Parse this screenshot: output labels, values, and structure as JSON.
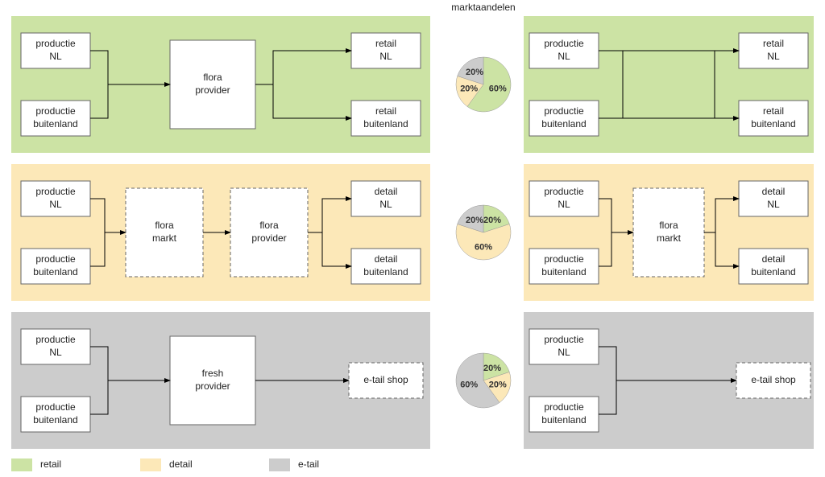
{
  "title": "marktaandelen",
  "colors": {
    "retail": "#cce3a4",
    "detail": "#fce8b8",
    "etail": "#cccccc",
    "retail_light": "#d6e9b5",
    "detail_light": "#fde9bd",
    "etail_light": "#d2d2d2",
    "node_fill": "#ffffff",
    "node_stroke": "#666666",
    "arrow": "#000000"
  },
  "legend": [
    {
      "label": "retail",
      "color_key": "retail"
    },
    {
      "label": "detail",
      "color_key": "detail"
    },
    {
      "label": "e-tail",
      "color_key": "etail"
    }
  ],
  "rows": [
    {
      "bg_key": "retail",
      "pie": {
        "slices": [
          {
            "label": "60%",
            "value": 60,
            "color_key": "retail"
          },
          {
            "label": "20%",
            "value": 20,
            "color_key": "detail"
          },
          {
            "label": "20%",
            "value": 20,
            "color_key": "etail"
          }
        ]
      },
      "left": {
        "nodes": {
          "prodNL": {
            "label1": "productie",
            "label2": "NL"
          },
          "prodBL": {
            "label1": "productie",
            "label2": "buitenland"
          },
          "mid": {
            "label1": "flora",
            "label2": "provider",
            "tall": true
          },
          "outTop": {
            "label1": "retail",
            "label2": "NL"
          },
          "outBot": {
            "label1": "retail",
            "label2": "buitenland"
          }
        }
      },
      "right": {
        "nodes": {
          "prodNL": {
            "label1": "productie",
            "label2": "NL"
          },
          "prodBL": {
            "label1": "productie",
            "label2": "buitenland"
          },
          "outTop": {
            "label1": "retail",
            "label2": "NL"
          },
          "outBot": {
            "label1": "retail",
            "label2": "buitenland"
          }
        }
      }
    },
    {
      "bg_key": "detail",
      "pie": {
        "slices": [
          {
            "label": "20%",
            "value": 20,
            "color_key": "retail"
          },
          {
            "label": "60%",
            "value": 60,
            "color_key": "detail"
          },
          {
            "label": "20%",
            "value": 20,
            "color_key": "etail"
          }
        ]
      },
      "left": {
        "nodes": {
          "prodNL": {
            "label1": "productie",
            "label2": "NL"
          },
          "prodBL": {
            "label1": "productie",
            "label2": "buitenland"
          },
          "midA": {
            "label1": "flora",
            "label2": "markt",
            "tall": true,
            "dashed": true
          },
          "midB": {
            "label1": "flora",
            "label2": "provider",
            "tall": true,
            "dashed": true
          },
          "outTop": {
            "label1": "detail",
            "label2": "NL"
          },
          "outBot": {
            "label1": "detail",
            "label2": "buitenland"
          }
        }
      },
      "right": {
        "nodes": {
          "prodNL": {
            "label1": "productie",
            "label2": "NL"
          },
          "prodBL": {
            "label1": "productie",
            "label2": "buitenland"
          },
          "mid": {
            "label1": "flora",
            "label2": "markt",
            "tall": true,
            "dashed": true
          },
          "outTop": {
            "label1": "detail",
            "label2": "NL"
          },
          "outBot": {
            "label1": "detail",
            "label2": "buitenland"
          }
        }
      }
    },
    {
      "bg_key": "etail",
      "pie": {
        "slices": [
          {
            "label": "20%",
            "value": 20,
            "color_key": "retail"
          },
          {
            "label": "20%",
            "value": 20,
            "color_key": "detail"
          },
          {
            "label": "60%",
            "value": 60,
            "color_key": "etail"
          }
        ]
      },
      "left": {
        "nodes": {
          "prodNL": {
            "label1": "productie",
            "label2": "NL"
          },
          "prodBL": {
            "label1": "productie",
            "label2": "buitenland"
          },
          "mid": {
            "label1": "fresh",
            "label2": "provider",
            "tall": true
          },
          "outTop": {
            "label1": "e-tail shop",
            "dashed": true,
            "single": true
          }
        }
      },
      "right": {
        "nodes": {
          "prodNL": {
            "label1": "productie",
            "label2": "NL"
          },
          "prodBL": {
            "label1": "productie",
            "label2": "buitenland"
          },
          "outTop": {
            "label1": "e-tail shop",
            "dashed": true,
            "single": true
          }
        }
      }
    }
  ]
}
